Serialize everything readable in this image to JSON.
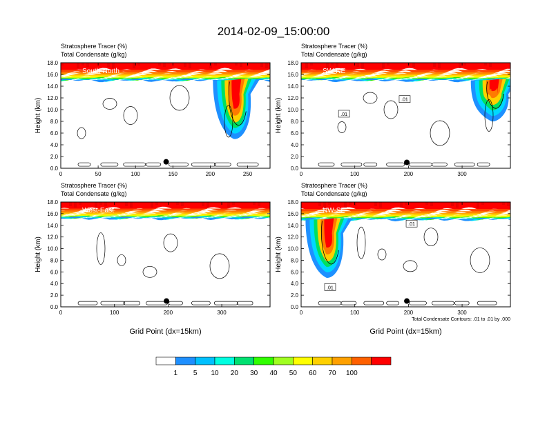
{
  "figure_title": "2014-02-09_15:00:00",
  "chart_data": [
    {
      "type": "heatmap",
      "title_line1": "Stratosphere Tracer   (%)",
      "title_line2": "Total Condensate   (g/kg)",
      "section_label": "South-North",
      "ylabel": "Height (km)",
      "xlabel": "",
      "xlim": [
        0,
        280
      ],
      "ylim": [
        0,
        18
      ],
      "xticks": [
        "0",
        "50",
        "100",
        "150",
        "200",
        "250"
      ],
      "xtick_values": [
        0,
        50,
        100,
        150,
        200,
        250
      ],
      "yticks": [
        "0.0",
        "2.0",
        "4.0",
        "6.0",
        "8.0",
        "10.0",
        "12.0",
        "14.0",
        "16.0",
        "18.0"
      ],
      "ytick_values": [
        0,
        2,
        4,
        6,
        8,
        10,
        12,
        14,
        16,
        18
      ],
      "tracer_base_km": 15.0,
      "plume": {
        "center_x": 235,
        "bottom_km": 5.0
      },
      "marker": {
        "x": 141,
        "y_km": 1.1
      },
      "contour_labels": []
    },
    {
      "type": "heatmap",
      "title_line1": "Stratosphere Tracer   (%)",
      "title_line2": "Total Condensate   (g/kg)",
      "section_label": "SW-NE",
      "ylabel": "Height (km)",
      "xlabel": "",
      "xlim": [
        0,
        390
      ],
      "ylim": [
        0,
        18
      ],
      "xticks": [
        "0",
        "100",
        "200",
        "300"
      ],
      "xtick_values": [
        0,
        100,
        200,
        300
      ],
      "yticks": [
        "0.0",
        "2.0",
        "4.0",
        "6.0",
        "8.0",
        "10.0",
        "12.0",
        "14.0",
        "16.0",
        "18.0"
      ],
      "ytick_values": [
        0,
        2,
        4,
        6,
        8,
        10,
        12,
        14,
        16,
        18
      ],
      "tracer_base_km": 15.0,
      "plume": {
        "center_x": 360,
        "bottom_km": 8.0
      },
      "marker": {
        "x": 197,
        "y_km": 1.0
      },
      "contour_labels": [
        {
          "text": ".01",
          "x": 80,
          "y_km": 9.3
        },
        {
          "text": ".01",
          "x": 193,
          "y_km": 11.8
        }
      ]
    },
    {
      "type": "heatmap",
      "title_line1": "Stratosphere Tracer   (%)",
      "title_line2": "Total Condensate   (g/kg)",
      "section_label": "West-East",
      "ylabel": "Height (km)",
      "xlabel": "Grid Point (dx=15km)",
      "xlim": [
        0,
        390
      ],
      "ylim": [
        0,
        18
      ],
      "xticks": [
        "0",
        "100",
        "200",
        "300"
      ],
      "xtick_values": [
        0,
        100,
        200,
        300
      ],
      "yticks": [
        "0.0",
        "2.0",
        "4.0",
        "6.0",
        "8.0",
        "10.0",
        "12.0",
        "14.0",
        "16.0",
        "18.0"
      ],
      "ytick_values": [
        0,
        2,
        4,
        6,
        8,
        10,
        12,
        14,
        16,
        18
      ],
      "tracer_base_km": 15.2,
      "plume": null,
      "marker": {
        "x": 197,
        "y_km": 1.0
      },
      "contour_labels": []
    },
    {
      "type": "heatmap",
      "title_line1": "Stratosphere Tracer   (%)",
      "title_line2": "Total Condensate   (g/kg)",
      "section_label": "NW-SE",
      "ylabel": "Height (km)",
      "xlabel": "Grid Point (dx=15km)",
      "xlim": [
        0,
        390
      ],
      "ylim": [
        0,
        18
      ],
      "xticks": [
        "0",
        "100",
        "200",
        "300"
      ],
      "xtick_values": [
        0,
        100,
        200,
        300
      ],
      "yticks": [
        "0.0",
        "2.0",
        "4.0",
        "6.0",
        "8.0",
        "10.0",
        "12.0",
        "14.0",
        "16.0",
        "18.0"
      ],
      "ytick_values": [
        0,
        2,
        4,
        6,
        8,
        10,
        12,
        14,
        16,
        18
      ],
      "tracer_base_km": 15.0,
      "plume": {
        "center_x": 52,
        "bottom_km": 5.0
      },
      "marker": {
        "x": 197,
        "y_km": 1.0
      },
      "contour_labels": [
        {
          "text": ".01",
          "x": 54,
          "y_km": 3.4
        },
        {
          "text": ".01",
          "x": 206,
          "y_km": 14.3
        }
      ],
      "footnote": "Total Condensate Contours: .01 to .01 by .000"
    }
  ],
  "colorbar": {
    "labels": [
      "1",
      "5",
      "10",
      "20",
      "30",
      "40",
      "50",
      "60",
      "70",
      "100"
    ],
    "colors": [
      "#ffffff",
      "#1e8fff",
      "#00c0ff",
      "#00ffe0",
      "#00e070",
      "#30ff00",
      "#a0ff20",
      "#ffff00",
      "#ffd000",
      "#ffa000",
      "#ff6000",
      "#ff0000"
    ]
  }
}
